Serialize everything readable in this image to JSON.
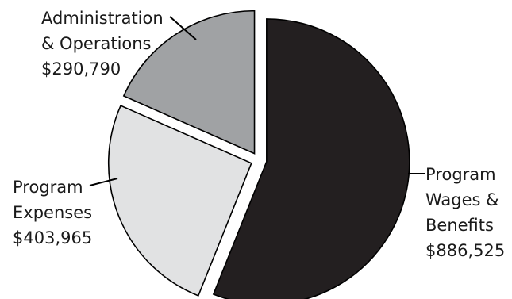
{
  "chart_data": {
    "type": "pie",
    "title": "",
    "slices": [
      {
        "label_lines": [
          "Program",
          "Wages &",
          "Benefits"
        ],
        "value_text": "$886,525",
        "value": 886525,
        "color": "#231f20",
        "exploded": true
      },
      {
        "label_lines": [
          "Program",
          "Expenses"
        ],
        "value_text": "$403,965",
        "value": 403965,
        "color": "#e1e2e3",
        "exploded": true
      },
      {
        "label_lines": [
          "Administration",
          "& Operations"
        ],
        "value_text": "$290,790",
        "value": 290790,
        "color": "#a0a2a4",
        "exploded": true
      }
    ]
  }
}
